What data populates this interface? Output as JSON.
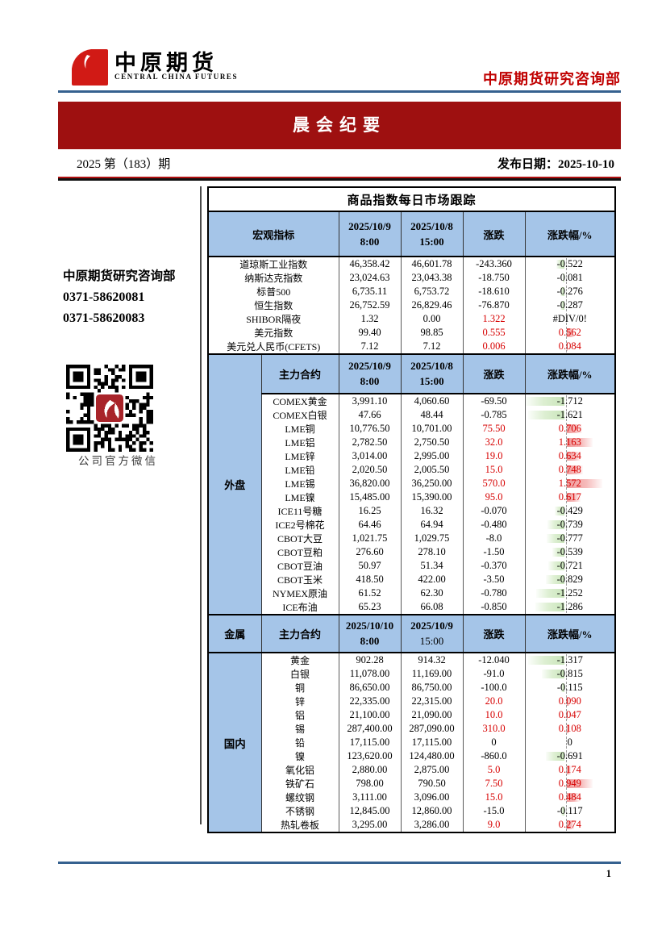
{
  "logo": {
    "cn": "中原期货",
    "en": "CENTRAL CHINA FUTURES"
  },
  "dept_title": "中原期货研究咨询部",
  "banner": {
    "title": "晨会纪要"
  },
  "issue": {
    "number": "2025 第（183）期",
    "publish": "发布日期：2025-10-10"
  },
  "sidebar": {
    "dept": "中原期货研究咨询部",
    "phone1": "0371-58620081",
    "phone2": "0371-58620083",
    "qr_caption": "公司官方微信"
  },
  "colors": {
    "banner_red": "#9e1010",
    "brand_red": "#c00000",
    "header_blue": "#a5c5e8",
    "up_red": "#d70000",
    "rule_blue": "#35618f",
    "bar_green": "#c9e5ba",
    "bar_pink": "#f09a9a"
  },
  "table": {
    "title": "商品指数每日市场跟踪",
    "labels": {
      "contract": "主力合约",
      "change": "涨跌",
      "change_pct": "涨跌幅/%"
    },
    "sections": [
      {
        "id": "macro",
        "label": "宏观指标",
        "date1": "2025/10/9",
        "time1": "8:00",
        "date2": "2025/10/8",
        "time2": "15:00",
        "time2_bold": true,
        "rows": [
          [
            "道琼斯工业指数",
            "46,358.42",
            "46,601.78",
            "-243.360",
            "-0.522"
          ],
          [
            "纳斯达克指数",
            "23,024.63",
            "23,043.38",
            "-18.750",
            "-0.081"
          ],
          [
            "标普500",
            "6,735.11",
            "6,753.72",
            "-18.610",
            "-0.276"
          ],
          [
            "恒生指数",
            "26,752.59",
            "26,829.46",
            "-76.870",
            "-0.287"
          ],
          [
            "SHIBOR隔夜",
            "1.32",
            "0.00",
            "1.322",
            "#DIV/0!"
          ],
          [
            "美元指数",
            "99.40",
            "98.85",
            "0.555",
            "0.562"
          ],
          [
            "美元兑人民币(CFETS)",
            "7.12",
            "7.12",
            "0.006",
            "0.084"
          ]
        ]
      },
      {
        "id": "outer",
        "label": "外盘",
        "date1": "2025/10/9",
        "time1": "8:00",
        "date2": "2025/10/8",
        "time2": "15:00",
        "time2_bold": true,
        "rows": [
          [
            "COMEX黄金",
            "3,991.10",
            "4,060.60",
            "-69.50",
            "-1.712"
          ],
          [
            "COMEX白银",
            "47.66",
            "48.44",
            "-0.785",
            "-1.621"
          ],
          [
            "LME铜",
            "10,776.50",
            "10,701.00",
            "75.50",
            "0.706"
          ],
          [
            "LME铝",
            "2,782.50",
            "2,750.50",
            "32.0",
            "1.163"
          ],
          [
            "LME锌",
            "3,014.00",
            "2,995.00",
            "19.0",
            "0.634"
          ],
          [
            "LME铅",
            "2,020.50",
            "2,005.50",
            "15.0",
            "0.748"
          ],
          [
            "LME锡",
            "36,820.00",
            "36,250.00",
            "570.0",
            "1.572"
          ],
          [
            "LME镍",
            "15,485.00",
            "15,390.00",
            "95.0",
            "0.617"
          ],
          [
            "ICE11号糖",
            "16.25",
            "16.32",
            "-0.070",
            "-0.429"
          ],
          [
            "ICE2号棉花",
            "64.46",
            "64.94",
            "-0.480",
            "-0.739"
          ],
          [
            "CBOT大豆",
            "1,021.75",
            "1,029.75",
            "-8.0",
            "-0.777"
          ],
          [
            "CBOT豆粕",
            "276.60",
            "278.10",
            "-1.50",
            "-0.539"
          ],
          [
            "CBOT豆油",
            "50.97",
            "51.34",
            "-0.370",
            "-0.721"
          ],
          [
            "CBOT玉米",
            "418.50",
            "422.00",
            "-3.50",
            "-0.829"
          ],
          [
            "NYMEX原油",
            "61.52",
            "62.30",
            "-0.780",
            "-1.252"
          ],
          [
            "ICE布油",
            "65.23",
            "66.08",
            "-0.850",
            "-1.286"
          ]
        ]
      },
      {
        "id": "domestic",
        "header_label": "金属",
        "label": "国内",
        "date1": "2025/10/10",
        "time1": "8:00",
        "date2": "2025/10/9",
        "time2": "15:00",
        "time2_bold": false,
        "rows": [
          [
            "黄金",
            "902.28",
            "914.32",
            "-12.040",
            "-1.317"
          ],
          [
            "白银",
            "11,078.00",
            "11,169.00",
            "-91.0",
            "-0.815"
          ],
          [
            "铜",
            "86,650.00",
            "86,750.00",
            "-100.0",
            "-0.115"
          ],
          [
            "锌",
            "22,335.00",
            "22,315.00",
            "20.0",
            "0.090"
          ],
          [
            "铝",
            "21,100.00",
            "21,090.00",
            "10.0",
            "0.047"
          ],
          [
            "锡",
            "287,400.00",
            "287,090.00",
            "310.0",
            "0.108"
          ],
          [
            "铅",
            "17,115.00",
            "17,115.00",
            "0",
            "0"
          ],
          [
            "镍",
            "123,620.00",
            "124,480.00",
            "-860.0",
            "-0.691"
          ],
          [
            "氧化铝",
            "2,880.00",
            "2,875.00",
            "5.0",
            "0.174"
          ],
          [
            "铁矿石",
            "798.00",
            "790.50",
            "7.50",
            "0.949"
          ],
          [
            "螺纹钢",
            "3,111.00",
            "3,096.00",
            "15.0",
            "0.484"
          ],
          [
            "不锈钢",
            "12,845.00",
            "12,860.00",
            "-15.0",
            "-0.117"
          ],
          [
            "热轧卷板",
            "3,295.00",
            "3,286.00",
            "9.0",
            "0.274"
          ]
        ]
      }
    ]
  },
  "footer": {
    "page": "1"
  }
}
